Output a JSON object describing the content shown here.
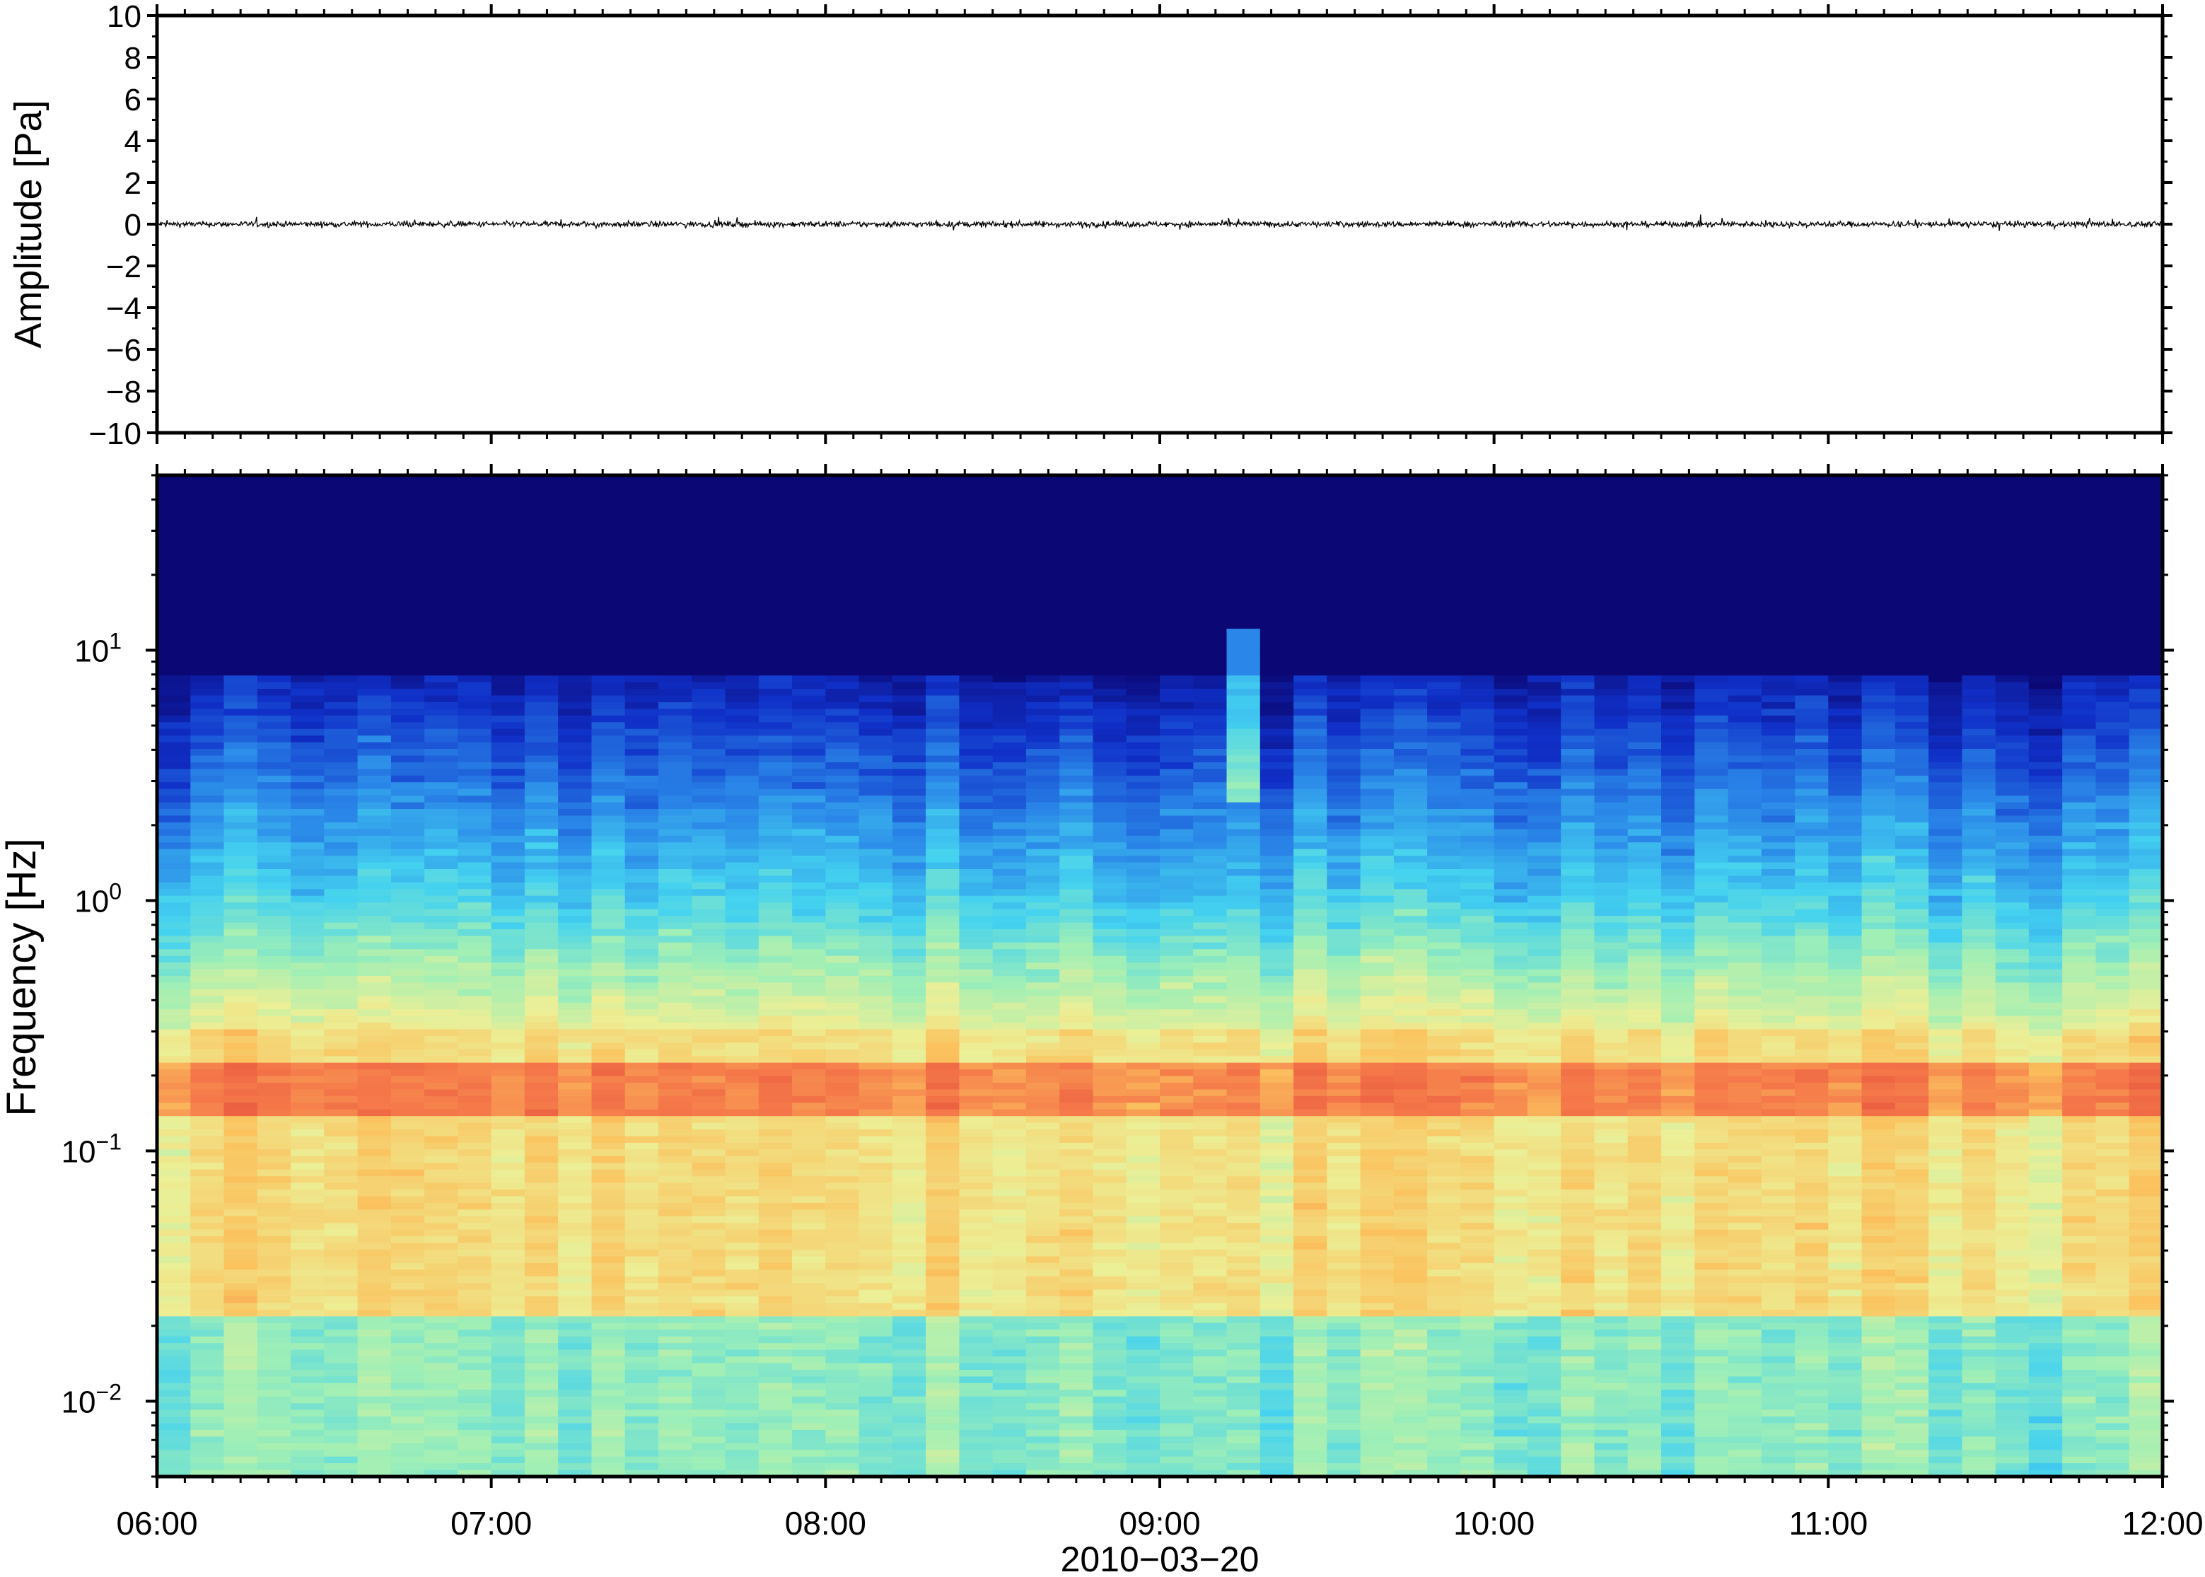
{
  "chart_data": [
    {
      "type": "line",
      "panel": "waveform",
      "ylabel": "Amplitude [Pa]",
      "ylim": [
        -10,
        10
      ],
      "y_ticks": [
        "10",
        "8",
        "6",
        "4",
        "2",
        "0",
        "−2",
        "−4",
        "−6",
        "−8",
        "−10"
      ],
      "y_tick_values": [
        10,
        8,
        6,
        4,
        2,
        0,
        -2,
        -4,
        -6,
        -8,
        -10
      ],
      "x_range": [
        "06:00",
        "12:00"
      ],
      "series": [
        {
          "values_summary": "noise centered on 0 Pa, peak excursions about ±0.5 Pa"
        }
      ],
      "line_color": "#000000",
      "grid": false
    },
    {
      "type": "heatmap",
      "panel": "spectrogram",
      "ylabel": "Frequency [Hz]",
      "y_scale": "log",
      "ylim": [
        0.005,
        50
      ],
      "y_ticks": [
        {
          "base": "10",
          "exp": "1",
          "value": 10
        },
        {
          "base": "10",
          "exp": "0",
          "value": 1
        },
        {
          "base": "10",
          "exp": "−1",
          "value": 0.1
        },
        {
          "base": "10",
          "exp": "−2",
          "value": 0.01
        }
      ],
      "x_ticks": [
        "06:00",
        "07:00",
        "08:00",
        "09:00",
        "10:00",
        "11:00",
        "12:00"
      ],
      "xlabel": "2010−03−20",
      "x_range": [
        "06:00",
        "12:00"
      ],
      "colormap": [
        "#0b0876",
        "#1030c8",
        "#2a86e8",
        "#44d2f0",
        "#9fefb6",
        "#ecef96",
        "#fbc25e",
        "#f5794a",
        "#e44a3a"
      ],
      "features": [
        {
          "description": "strong band",
          "freq_hz": [
            0.14,
            0.22
          ],
          "color": "#f5794a"
        },
        {
          "description": "low-power region",
          "freq_hz": [
            8,
            50
          ],
          "color": "#0b0876"
        },
        {
          "description": "broadband burst",
          "time": "09:09",
          "freq_hz": [
            2.5,
            12
          ]
        }
      ],
      "grid": false
    }
  ]
}
